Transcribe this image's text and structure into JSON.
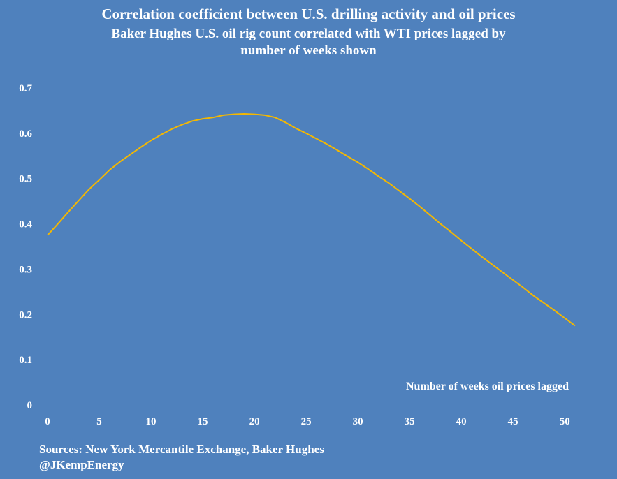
{
  "chart_data": {
    "type": "line",
    "title": "Correlation coefficient between U.S. drilling activity and oil prices",
    "subtitle_line1": "Baker Hughes U.S. oil rig count correlated with WTI prices lagged by",
    "subtitle_line2": "number of weeks shown",
    "xlabel": "Number of weeks oil prices lagged",
    "ylabel": "",
    "xlim": [
      0,
      51
    ],
    "ylim": [
      0,
      0.7
    ],
    "x_ticks": [
      "0",
      "5",
      "10",
      "15",
      "20",
      "25",
      "30",
      "35",
      "40",
      "45",
      "50"
    ],
    "y_ticks": [
      "0",
      "0.1",
      "0.2",
      "0.3",
      "0.4",
      "0.5",
      "0.6",
      "0.7"
    ],
    "grid": false,
    "series": [
      {
        "name": "Correlation coefficient",
        "color": "#f5b800",
        "x": [
          0,
          1,
          2,
          3,
          4,
          5,
          6,
          7,
          8,
          9,
          10,
          11,
          12,
          13,
          14,
          15,
          16,
          17,
          18,
          19,
          20,
          21,
          22,
          23,
          24,
          25,
          26,
          27,
          28,
          29,
          30,
          31,
          32,
          33,
          34,
          35,
          36,
          37,
          38,
          39,
          40,
          41,
          42,
          43,
          44,
          45,
          46,
          47,
          48,
          49,
          50,
          51
        ],
        "values": [
          0.375,
          0.4,
          0.426,
          0.451,
          0.476,
          0.497,
          0.519,
          0.537,
          0.553,
          0.569,
          0.584,
          0.597,
          0.609,
          0.619,
          0.627,
          0.632,
          0.635,
          0.64,
          0.642,
          0.643,
          0.642,
          0.64,
          0.635,
          0.624,
          0.611,
          0.6,
          0.588,
          0.576,
          0.563,
          0.549,
          0.536,
          0.521,
          0.505,
          0.49,
          0.473,
          0.456,
          0.438,
          0.419,
          0.4,
          0.382,
          0.363,
          0.345,
          0.327,
          0.31,
          0.293,
          0.276,
          0.259,
          0.241,
          0.225,
          0.209,
          0.192,
          0.175
        ]
      }
    ]
  },
  "footer": {
    "sources": "Sources:  New York Mercantile Exchange, Baker Hughes",
    "handle": "@JKempEnergy"
  }
}
